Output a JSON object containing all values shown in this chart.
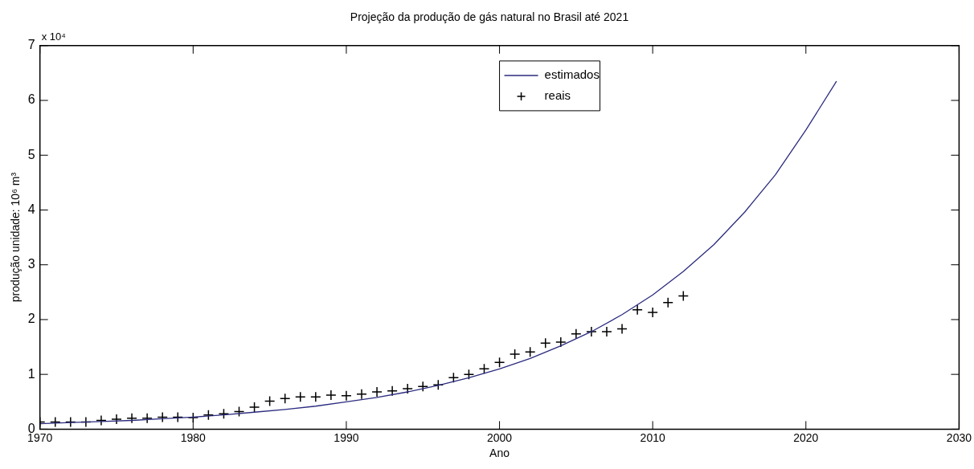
{
  "chart_data": {
    "type": "line",
    "title": "Projeção da produção de gás natural no Brasil até 2021",
    "xlabel": "Ano",
    "ylabel": "produção unidade: 10⁶ m³",
    "annotations": [
      "x 10⁴"
    ],
    "xlim": [
      1970,
      2030
    ],
    "xticks": [
      1970,
      1980,
      1990,
      2000,
      2010,
      2020,
      2030
    ],
    "ylim": [
      0,
      7
    ],
    "yticks": [
      0,
      1,
      2,
      3,
      4,
      5,
      6,
      7
    ],
    "grid": false,
    "legend": "top",
    "series": [
      {
        "name": "estimados",
        "type": "line",
        "color": "#2b2b7f",
        "marker": "none",
        "line_style": "solid",
        "x": [
          1970,
          1972,
          1974,
          1976,
          1978,
          1980,
          1982,
          1984,
          1986,
          1988,
          1990,
          1992,
          1994,
          1996,
          1998,
          2000,
          2002,
          2004,
          2006,
          2008,
          2010,
          2012,
          2014,
          2016,
          2018,
          2020,
          2022
        ],
        "values": [
          0.1,
          0.12,
          0.14,
          0.16,
          0.19,
          0.22,
          0.26,
          0.31,
          0.36,
          0.42,
          0.5,
          0.58,
          0.68,
          0.8,
          0.94,
          1.1,
          1.29,
          1.52,
          1.78,
          2.09,
          2.45,
          2.88,
          3.37,
          3.96,
          4.64,
          5.46,
          6.35
        ]
      },
      {
        "name": "reais",
        "type": "scatter",
        "color": "#000000",
        "marker": "cross",
        "x": [
          1970,
          1971,
          1972,
          1973,
          1974,
          1975,
          1976,
          1977,
          1978,
          1979,
          1980,
          1981,
          1982,
          1983,
          1984,
          1985,
          1986,
          1987,
          1988,
          1989,
          1990,
          1991,
          1992,
          1993,
          1994,
          1995,
          1996,
          1997,
          1998,
          1999,
          2000,
          2001,
          2002,
          2003,
          2004,
          2005,
          2006,
          2007,
          2008,
          2009,
          2010,
          2011,
          2012
        ],
        "values": [
          0.13,
          0.13,
          0.13,
          0.13,
          0.16,
          0.18,
          0.2,
          0.2,
          0.22,
          0.22,
          0.21,
          0.26,
          0.28,
          0.32,
          0.4,
          0.51,
          0.56,
          0.59,
          0.59,
          0.62,
          0.61,
          0.64,
          0.68,
          0.7,
          0.74,
          0.78,
          0.81,
          0.94,
          1.0,
          1.1,
          1.22,
          1.37,
          1.41,
          1.57,
          1.59,
          1.74,
          1.78,
          1.78,
          1.83,
          2.18,
          2.13,
          2.31,
          2.43
        ]
      }
    ]
  }
}
